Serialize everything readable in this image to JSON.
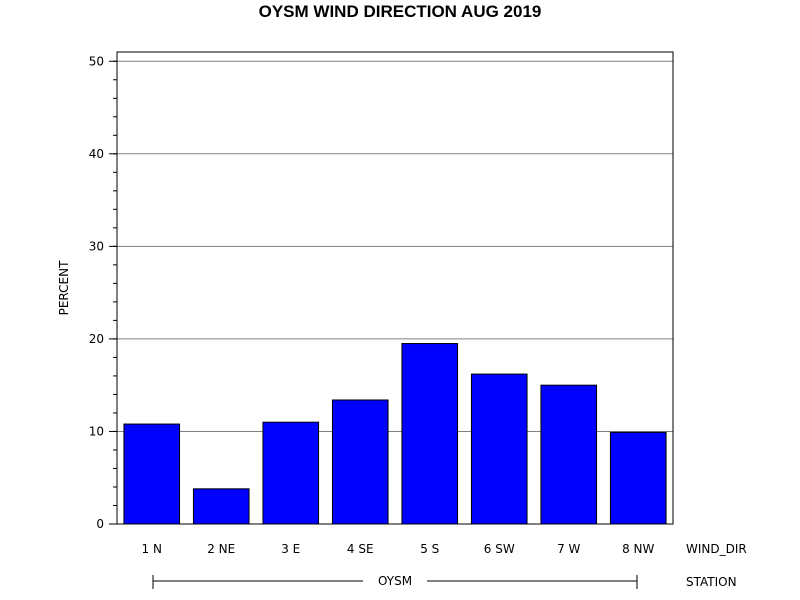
{
  "chart_data": {
    "type": "bar",
    "title": "OYSM WIND DIRECTION AUG 2019",
    "ylabel": "PERCENT",
    "xlabel": "WIND_DIR",
    "group_axis_label": "STATION",
    "group_label": "OYSM",
    "categories": [
      "1 N",
      "2 NE",
      "3 E",
      "4 SE",
      "5 S",
      "6 SW",
      "7 W",
      "8 NW"
    ],
    "values": [
      10.8,
      3.8,
      11.0,
      13.4,
      19.5,
      16.2,
      15.0,
      9.9
    ],
    "ylim": [
      0,
      51
    ],
    "yticks": [
      "0",
      "10",
      "20",
      "30",
      "40",
      "50"
    ],
    "grid": true,
    "bar_color": "#0000ff"
  }
}
